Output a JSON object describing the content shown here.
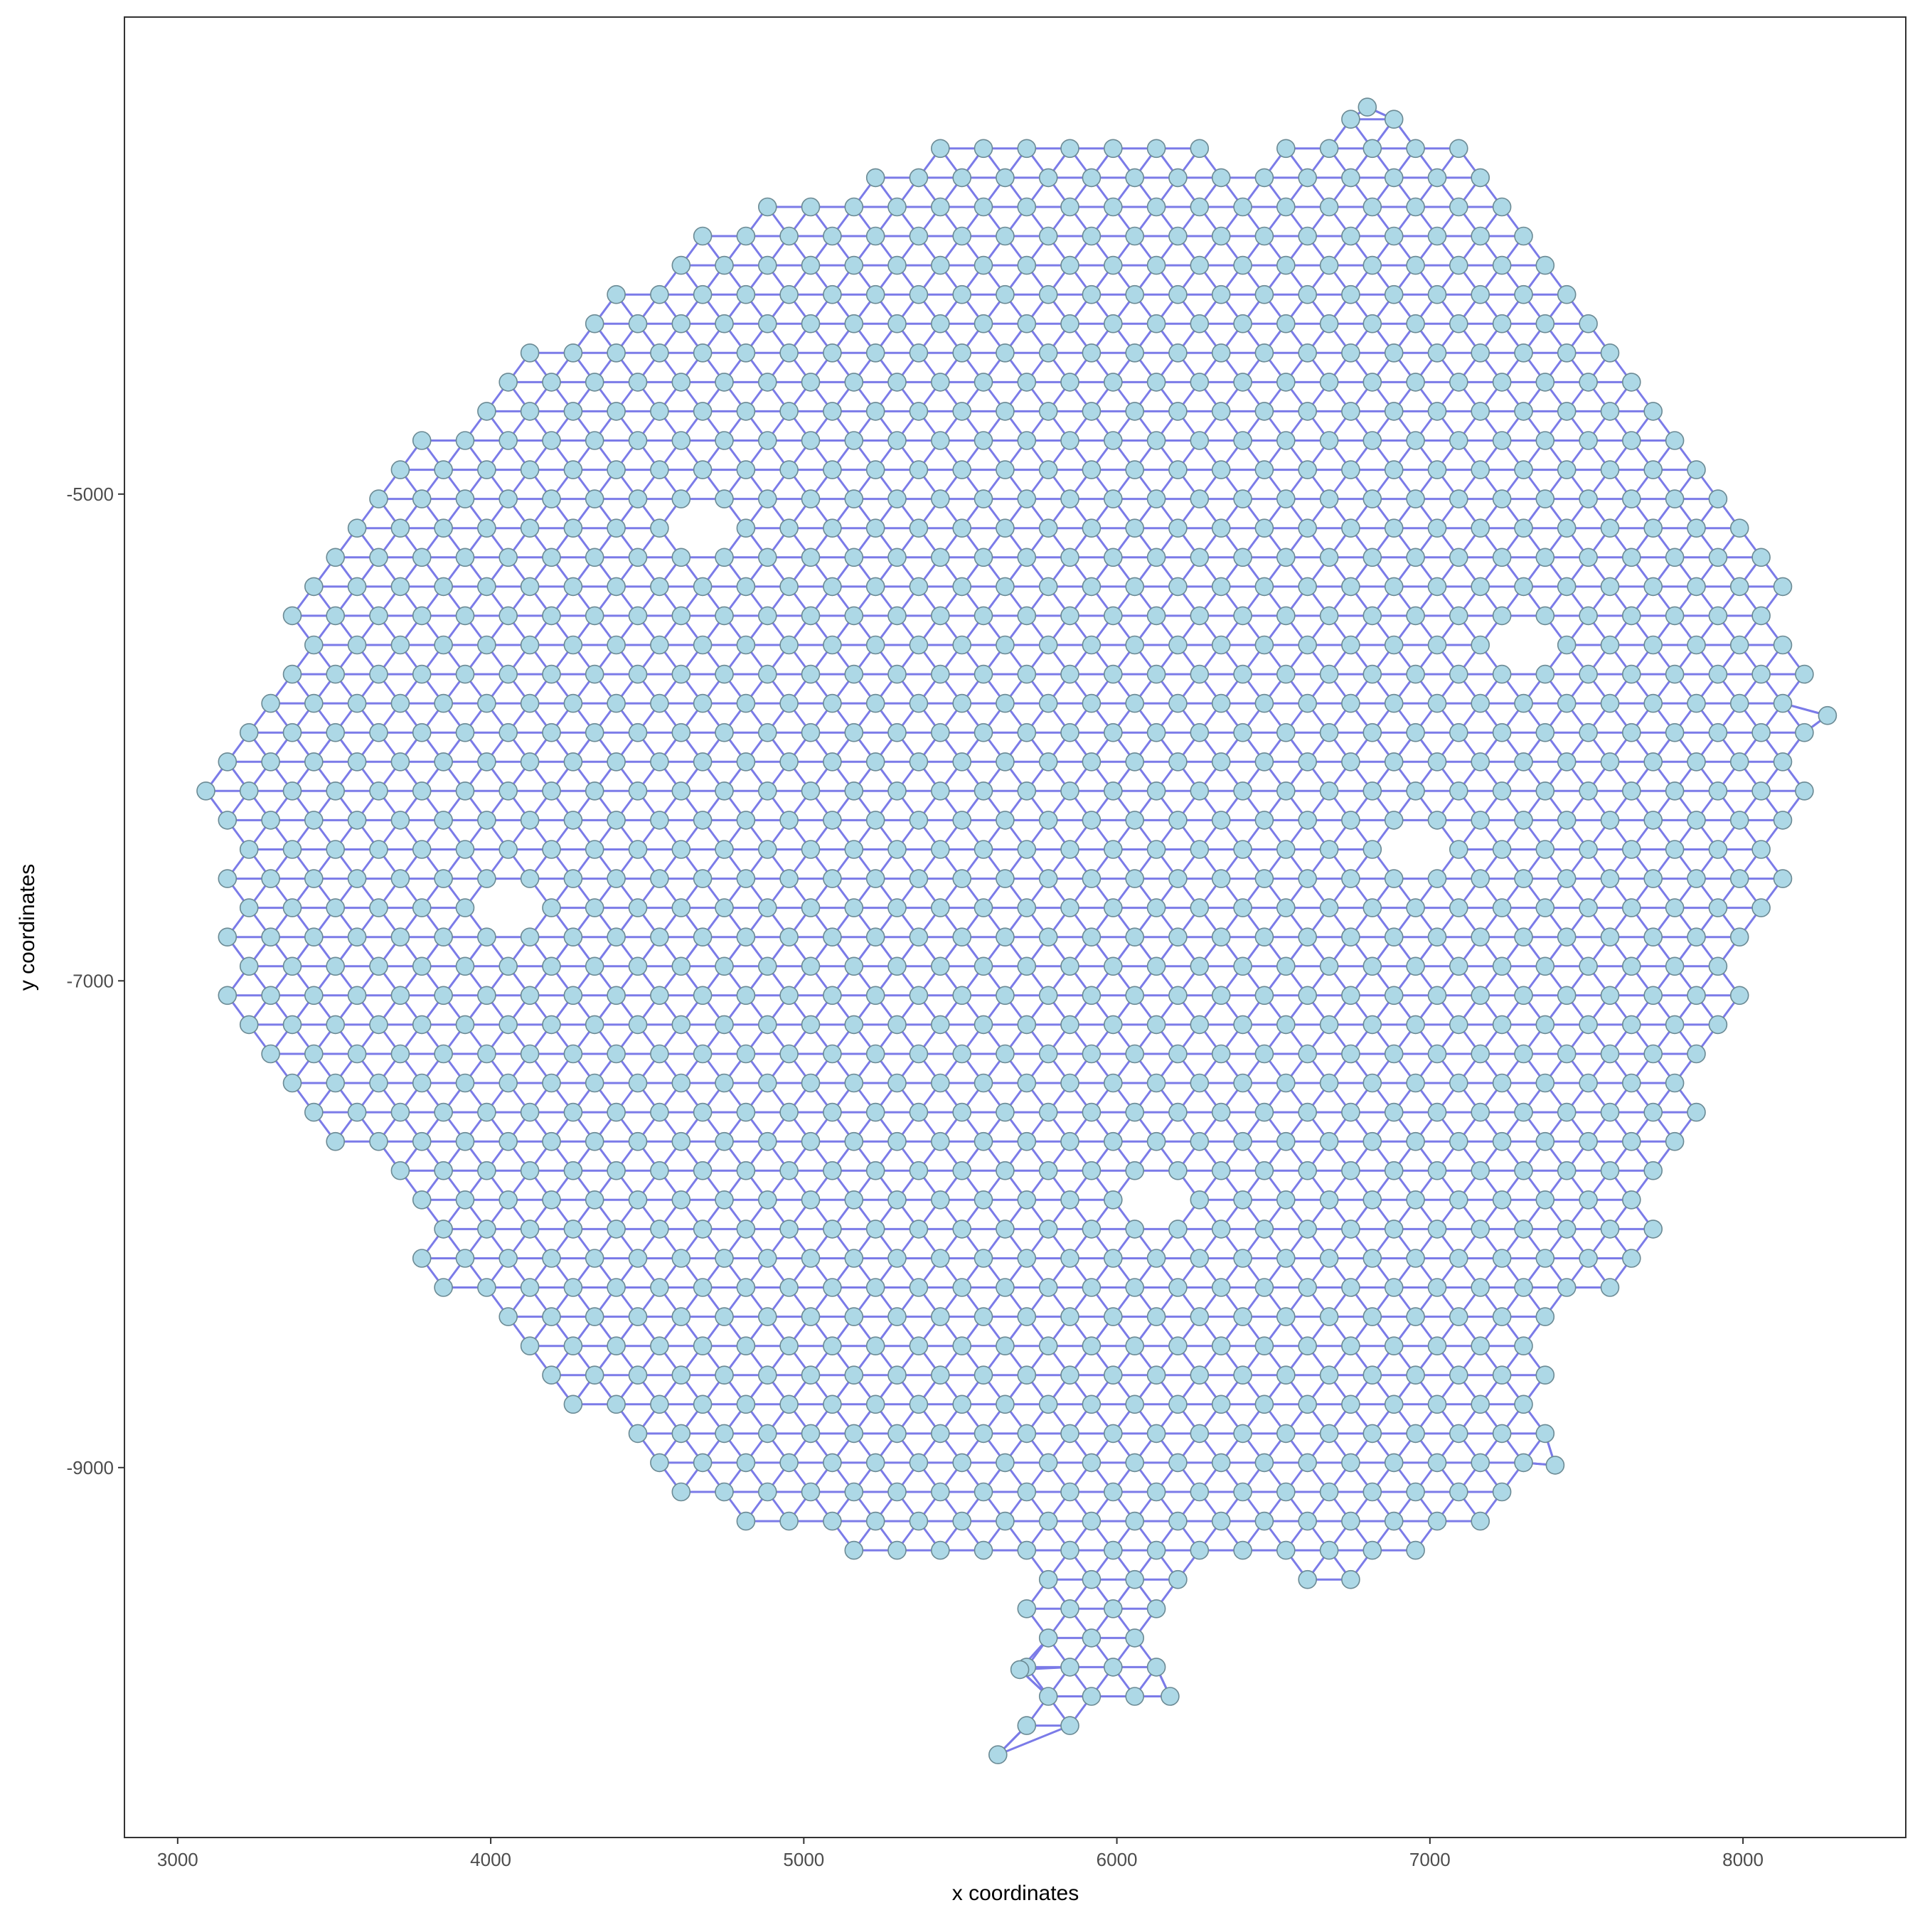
{
  "chart_data": {
    "type": "scatter",
    "subtype": "spatial-neighbor-graph",
    "title": "",
    "xlabel": "x coordinates",
    "ylabel": "y coordinates",
    "xlim": [
      2830,
      8520
    ],
    "ylim": [
      -10520,
      -3040
    ],
    "x_ticks": [
      3000,
      4000,
      5000,
      6000,
      7000,
      8000
    ],
    "x_tick_labels": [
      "3000",
      "4000",
      "5000",
      "6000",
      "7000",
      "8000"
    ],
    "y_ticks": [
      -5000,
      -7000,
      -9000
    ],
    "y_tick_labels": [
      "-5000",
      "-7000",
      "-9000"
    ],
    "grid": false,
    "legend": "none",
    "lattice": {
      "description": "hexagonal grid of spots, spacing in data units",
      "dx": 138,
      "dy": 120,
      "origin_x": 3090,
      "origin_y": -6220
    },
    "outline": [
      [
        3090,
        -6220
      ],
      [
        3290,
        -5860
      ],
      [
        3350,
        -5510
      ],
      [
        3560,
        -5150
      ],
      [
        3700,
        -4900
      ],
      [
        3840,
        -4670
      ],
      [
        4200,
        -4320
      ],
      [
        4470,
        -4080
      ],
      [
        4750,
        -3850
      ],
      [
        5080,
        -3730
      ],
      [
        5300,
        -3610
      ],
      [
        5640,
        -3530
      ],
      [
        6060,
        -3530
      ],
      [
        6480,
        -3600
      ],
      [
        6800,
        -3410
      ],
      [
        7150,
        -3530
      ],
      [
        7350,
        -3850
      ],
      [
        7620,
        -4330
      ],
      [
        7850,
        -4760
      ],
      [
        8050,
        -5040
      ],
      [
        8190,
        -5540
      ],
      [
        8270,
        -5910
      ],
      [
        8190,
        -6500
      ],
      [
        8040,
        -6960
      ],
      [
        7910,
        -7430
      ],
      [
        7770,
        -7930
      ],
      [
        7580,
        -8290
      ],
      [
        7380,
        -8390
      ],
      [
        7400,
        -8990
      ],
      [
        7200,
        -9230
      ],
      [
        7060,
        -9360
      ],
      [
        6840,
        -9480
      ],
      [
        6580,
        -9480
      ],
      [
        6400,
        -9360
      ],
      [
        6150,
        -9600
      ],
      [
        6170,
        -9940
      ],
      [
        5620,
        -10180
      ],
      [
        5690,
        -9600
      ],
      [
        5660,
        -9350
      ],
      [
        5130,
        -9350
      ],
      [
        4800,
        -9230
      ],
      [
        4580,
        -9110
      ],
      [
        4440,
        -8870
      ],
      [
        4250,
        -8750
      ],
      [
        3850,
        -8270
      ],
      [
        3770,
        -8150
      ],
      [
        3690,
        -7790
      ],
      [
        3490,
        -7680
      ],
      [
        3420,
        -7560
      ],
      [
        3290,
        -7320
      ],
      [
        3150,
        -7060
      ]
    ],
    "holes": [
      [
        4690,
        -5150,
        75
      ],
      [
        4120,
        -6700,
        65
      ],
      [
        6100,
        -7850,
        60
      ],
      [
        6920,
        -6500,
        70
      ],
      [
        7250,
        -5600,
        60
      ]
    ],
    "outliers": [
      [
        5620,
        -10180
      ],
      [
        6170,
        -9940
      ],
      [
        5690,
        -9830
      ],
      [
        7400,
        -8990
      ],
      [
        6800,
        -3410
      ],
      [
        8270,
        -5910
      ]
    ],
    "colors": {
      "background": "#ffffff",
      "edge": "#7b7be8",
      "edge_boundary": "#3030d8",
      "node_fill": "#add8e6",
      "node_stroke": "#6b8a94",
      "panel_border": "#333333",
      "tick_text": "#4d4d4d",
      "axis_title": "#000000"
    }
  }
}
